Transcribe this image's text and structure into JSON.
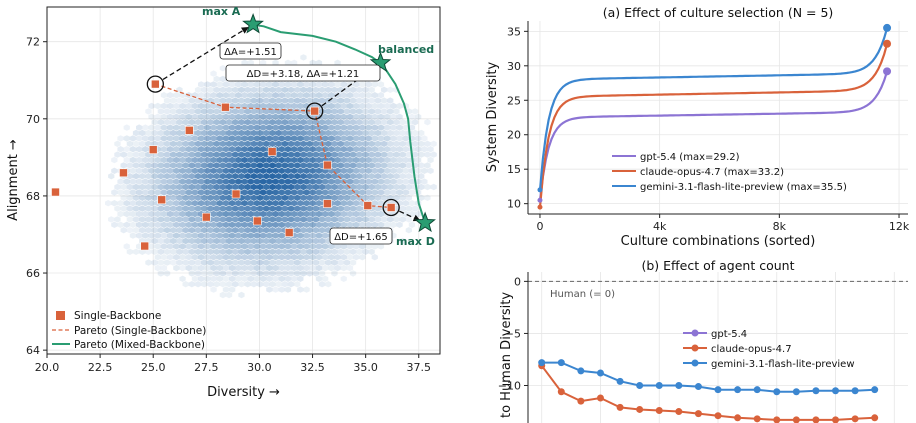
{
  "chart_data": [
    {
      "type": "scatter",
      "xlabel": "Diversity →",
      "ylabel": "Alignment →",
      "xlim": [
        20.0,
        38.5
      ],
      "ylim": [
        63.9,
        72.9
      ],
      "xticks": [
        "20.0",
        "22.5",
        "25.0",
        "27.5",
        "30.0",
        "32.5",
        "35.0",
        "37.5"
      ],
      "yticks": [
        "64",
        "66",
        "68",
        "70",
        "72"
      ],
      "density": {
        "center": [
          30.5,
          68.5
        ],
        "color": "#1f5fa0"
      },
      "single_backbone": {
        "name": "Single-Backbone",
        "color": "#d9623b",
        "points": [
          [
            20.4,
            68.1
          ],
          [
            23.6,
            68.6
          ],
          [
            24.6,
            66.7
          ],
          [
            25.1,
            70.9
          ],
          [
            25.0,
            69.2
          ],
          [
            25.4,
            67.9
          ],
          [
            26.7,
            69.7
          ],
          [
            27.5,
            67.45
          ],
          [
            28.4,
            70.3
          ],
          [
            28.9,
            68.05
          ],
          [
            29.9,
            67.35
          ],
          [
            30.6,
            69.15
          ],
          [
            31.4,
            67.05
          ],
          [
            32.6,
            70.2
          ],
          [
            33.2,
            68.8
          ],
          [
            33.2,
            67.8
          ],
          [
            35.1,
            67.75
          ],
          [
            36.2,
            67.7
          ]
        ]
      },
      "pareto_single": {
        "name": "Pareto (Single-Backbone)",
        "points": [
          [
            25.1,
            70.9
          ],
          [
            28.4,
            70.3
          ],
          [
            32.6,
            70.2
          ],
          [
            33.2,
            68.8
          ],
          [
            35.1,
            67.75
          ],
          [
            36.2,
            67.7
          ]
        ]
      },
      "pareto_mixed": {
        "name": "Pareto (Mixed-Backbone)",
        "color": "#2a9d72",
        "points": [
          [
            29.6,
            72.45
          ],
          [
            30.2,
            72.4
          ],
          [
            31.0,
            72.25
          ],
          [
            32.5,
            72.15
          ],
          [
            33.6,
            72.0
          ],
          [
            34.5,
            71.8
          ],
          [
            35.3,
            71.6
          ],
          [
            35.8,
            71.4
          ],
          [
            36.4,
            70.9
          ],
          [
            36.8,
            70.4
          ],
          [
            37.0,
            70.0
          ],
          [
            37.1,
            69.4
          ],
          [
            37.3,
            68.5
          ],
          [
            37.5,
            67.8
          ],
          [
            37.8,
            67.3
          ]
        ]
      },
      "stars": [
        {
          "label": "max A",
          "x": 29.7,
          "y": 72.45
        },
        {
          "label": "balanced",
          "x": 35.7,
          "y": 71.45
        },
        {
          "label": "max D",
          "x": 37.8,
          "y": 67.3
        }
      ],
      "circled": [
        [
          25.1,
          70.9
        ],
        [
          32.6,
          70.2
        ],
        [
          36.2,
          67.7
        ]
      ],
      "annotations": [
        "ΔA=+1.51",
        "ΔD=+3.18, ΔA=+1.21",
        "ΔD=+1.65"
      ]
    },
    {
      "type": "line",
      "title": "(a) Effect of culture selection  (N = 5)",
      "xlabel": "Culture combinations (sorted)",
      "ylabel": "System Diversity",
      "xlim": [
        -400,
        12300
      ],
      "ylim": [
        8.5,
        36.5
      ],
      "xticks": [
        {
          "v": 0,
          "t": "0"
        },
        {
          "v": 4000,
          "t": "4k"
        },
        {
          "v": 8000,
          "t": "8k"
        },
        {
          "v": 12000,
          "t": "12k"
        }
      ],
      "yticks": [
        {
          "v": 10,
          "t": "10"
        },
        {
          "v": 15,
          "t": "15"
        },
        {
          "v": 20,
          "t": "20"
        },
        {
          "v": 25,
          "t": "25"
        },
        {
          "v": 30,
          "t": "30"
        },
        {
          "v": 35,
          "t": "35"
        }
      ],
      "xmax": 11600,
      "series": [
        {
          "name": "gpt-5.4 (max=29.2)",
          "color": "#8c74d4",
          "min": 10.5,
          "mid": 22.5,
          "max": 29.2
        },
        {
          "name": "claude-opus-4.7 (max=33.2)",
          "color": "#d9623b",
          "min": 9.5,
          "mid": 25.5,
          "max": 33.2
        },
        {
          "name": "gemini-3.1-flash-lite-preview (max=35.5)",
          "color": "#3b86d0",
          "min": 12.0,
          "mid": 28.0,
          "max": 35.5
        }
      ]
    },
    {
      "type": "line",
      "title": "(b) Effect of agent count",
      "ylabel": "to Human Diversity",
      "xlim": [
        -0.7,
        18.7
      ],
      "ylim": [
        -13.6,
        0.9
      ],
      "yticks": [
        {
          "v": 0,
          "t": "0"
        },
        {
          "v": -5,
          "t": "−5"
        },
        {
          "v": -10,
          "t": "−10"
        }
      ],
      "baseline": {
        "label": "Human (= 0)",
        "value": 0
      },
      "series": [
        {
          "name": "gpt-5.4",
          "color": "#8c74d4",
          "values": []
        },
        {
          "name": "claude-opus-4.7",
          "color": "#d9623b",
          "values": [
            -8.1,
            -10.6,
            -11.5,
            -11.2,
            -12.1,
            -12.3,
            -12.4,
            -12.5,
            -12.7,
            -12.9,
            -13.1,
            -13.2,
            -13.3,
            -13.3,
            -13.3,
            -13.3,
            -13.2,
            -13.1
          ]
        },
        {
          "name": "gemini-3.1-flash-lite-preview",
          "color": "#3b86d0",
          "values": [
            -7.8,
            -7.8,
            -8.6,
            -8.8,
            -9.6,
            -10.0,
            -10.0,
            -10.0,
            -10.1,
            -10.4,
            -10.4,
            -10.4,
            -10.6,
            -10.6,
            -10.5,
            -10.5,
            -10.5,
            -10.4
          ]
        }
      ]
    }
  ]
}
